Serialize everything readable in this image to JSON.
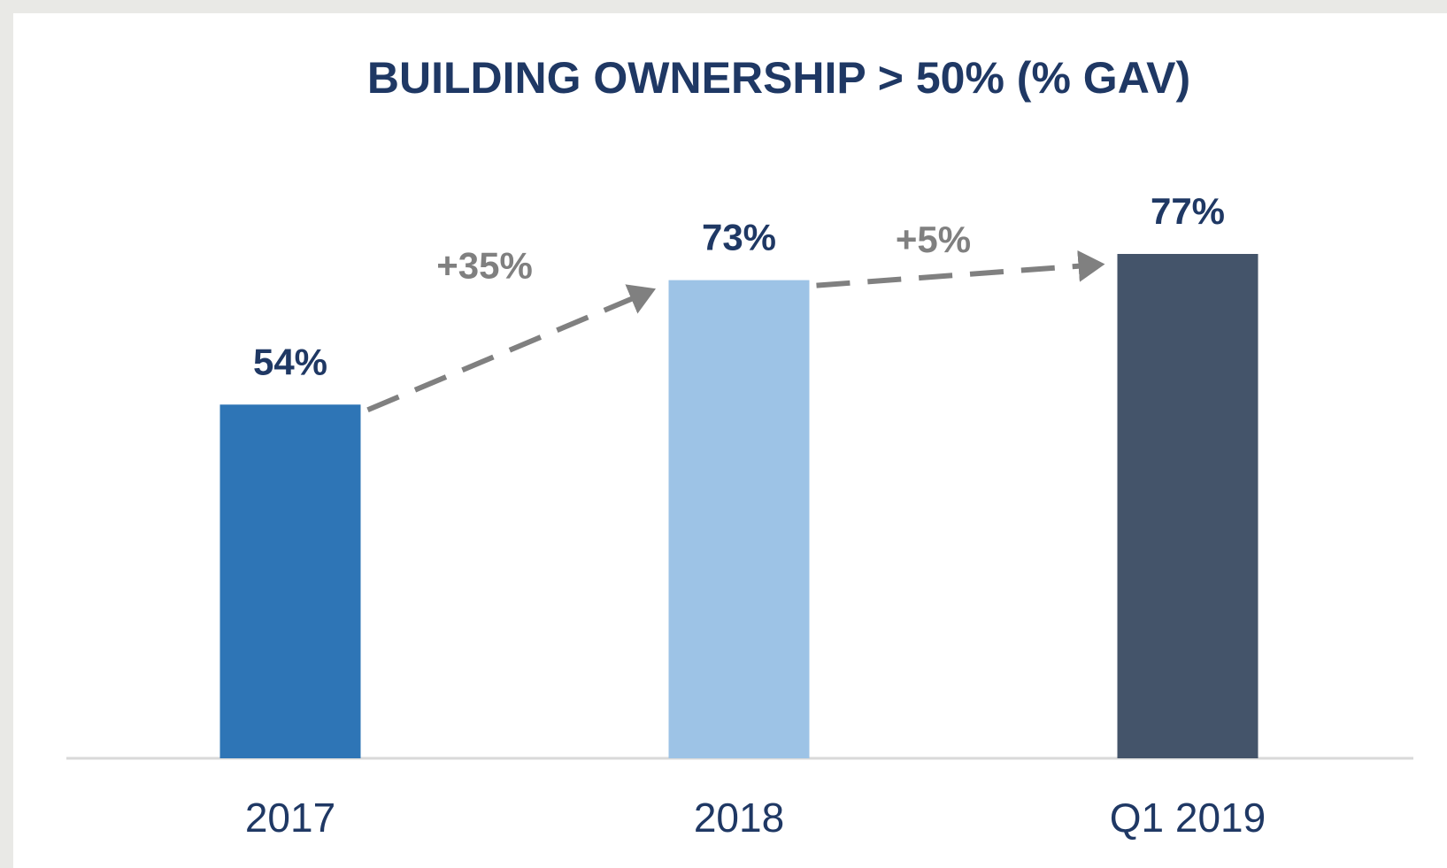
{
  "chart_data": {
    "type": "bar",
    "title": "BUILDING OWNERSHIP > 50% (% GAV)",
    "categories": [
      "2017",
      "2018",
      "Q1 2019"
    ],
    "values": [
      54,
      73,
      77
    ],
    "value_labels": [
      "54%",
      "73%",
      "77%"
    ],
    "colors": [
      "#2e75b6",
      "#9dc3e6",
      "#44546a"
    ],
    "annotations": [
      "+35%",
      "+5%"
    ]
  }
}
